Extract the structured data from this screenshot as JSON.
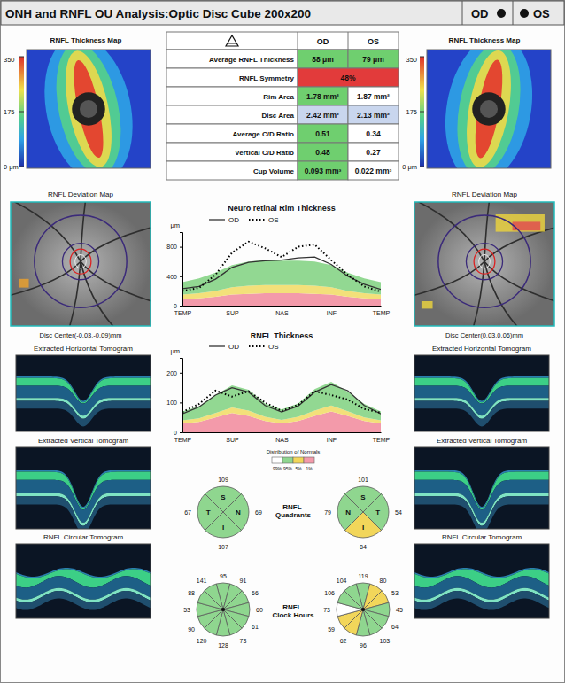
{
  "header": {
    "title": "ONH and RNFL OU Analysis:Optic Disc Cube 200x200",
    "od": "OD",
    "os": "OS"
  },
  "table": {
    "columns": [
      "OD",
      "OS"
    ],
    "rows": [
      {
        "label": "Average RNFL Thickness",
        "cells": [
          {
            "text": "88 μm",
            "color": "#6fcf6f"
          },
          {
            "text": "79 μm",
            "color": "#6fcf6f"
          }
        ]
      },
      {
        "label": "RNFL Symmetry",
        "cells": [
          {
            "text": "48%",
            "color": "#e23b3b"
          }
        ]
      },
      {
        "label": "Rim Area",
        "cells": [
          {
            "text": "1.78 mm²",
            "color": "#6fcf6f"
          },
          {
            "text": "1.87 mm²",
            "color": "#ffffff"
          }
        ]
      },
      {
        "label": "Disc Area",
        "cells": [
          {
            "text": "2.42 mm²",
            "color": "#c9d6ee"
          },
          {
            "text": "2.13 mm²",
            "color": "#c9d6ee"
          }
        ]
      },
      {
        "label": "Average C/D Ratio",
        "cells": [
          {
            "text": "0.51",
            "color": "#6fcf6f"
          },
          {
            "text": "0.34",
            "color": "#ffffff"
          }
        ]
      },
      {
        "label": "Vertical C/D Ratio",
        "cells": [
          {
            "text": "0.48",
            "color": "#6fcf6f"
          },
          {
            "text": "0.27",
            "color": "#ffffff"
          }
        ]
      },
      {
        "label": "Cup Volume",
        "cells": [
          {
            "text": "0.093 mm³",
            "color": "#6fcf6f"
          },
          {
            "text": "0.022 mm³",
            "color": "#ffffff"
          }
        ]
      }
    ]
  },
  "panels": {
    "od": {
      "thickness_map": "RNFL Thickness Map",
      "color_bar": {
        "range": [
          0,
          350
        ],
        "ticks": [
          350,
          175,
          {
            "value": 0,
            "label": "0 μm"
          }
        ]
      },
      "deviation_map": "RNFL Deviation Map",
      "disc_center": "Disc Center(-0.03,-0.09)mm",
      "horizontal_tomogram": "Extracted Horizontal Tomogram",
      "vertical_tomogram": "Extracted Vertical Tomogram",
      "circular_tomogram": "RNFL Circular Tomogram"
    },
    "os": {
      "thickness_map": "RNFL Thickness Map",
      "color_bar": {
        "range": [
          0,
          350
        ],
        "ticks": [
          350,
          175,
          {
            "value": 0,
            "label": "0 μm"
          }
        ]
      },
      "deviation_map": "RNFL Deviation Map",
      "disc_center": "Disc Center(0.03,0.06)mm",
      "horizontal_tomogram": "Extracted Horizontal Tomogram",
      "vertical_tomogram": "Extracted Vertical Tomogram",
      "circular_tomogram": "RNFL Circular Tomogram"
    }
  },
  "chart_data": [
    {
      "type": "line",
      "title": "Neuro retinal Rim Thickness",
      "y_label": "μm",
      "categories": [
        "TEMP",
        null,
        null,
        "SUP",
        null,
        null,
        "NAS",
        null,
        null,
        "INF",
        null,
        null,
        "TEMP"
      ],
      "ylim": [
        0,
        1000
      ],
      "yticks": [
        0,
        400,
        800
      ],
      "legend": "top-left",
      "normal_bands": [
        {
          "color": "#f39aaa",
          "values": [
            90,
            100,
            120,
            150,
            160,
            170,
            170,
            170,
            160,
            150,
            120,
            100,
            90
          ]
        },
        {
          "color": "#f3e07a",
          "values": [
            60,
            70,
            80,
            100,
            110,
            110,
            110,
            110,
            110,
            100,
            80,
            70,
            60
          ]
        },
        {
          "color": "#92d892",
          "values": [
            170,
            200,
            250,
            300,
            330,
            340,
            330,
            330,
            330,
            300,
            250,
            200,
            170
          ]
        }
      ],
      "series": [
        {
          "name": "OD",
          "color": "#333333",
          "line_style": "solid",
          "values": [
            230,
            260,
            360,
            520,
            590,
            610,
            620,
            650,
            660,
            560,
            400,
            290,
            220
          ]
        },
        {
          "name": "OS",
          "color": "#000000",
          "line_style": "dotted",
          "values": [
            200,
            240,
            420,
            720,
            870,
            780,
            660,
            800,
            830,
            620,
            420,
            260,
            190
          ]
        }
      ]
    },
    {
      "type": "line",
      "title": "RNFL Thickness",
      "y_label": "μm",
      "categories": [
        "TEMP",
        null,
        null,
        "SUP",
        null,
        null,
        "NAS",
        null,
        null,
        "INF",
        null,
        null,
        "TEMP"
      ],
      "ylim": [
        0,
        250
      ],
      "yticks": [
        0,
        100,
        200
      ],
      "legend": "top-left",
      "normal_bands": [
        {
          "color": "#f39aaa",
          "values": [
            30,
            35,
            50,
            65,
            55,
            38,
            30,
            38,
            55,
            70,
            55,
            38,
            30
          ]
        },
        {
          "color": "#f3e07a",
          "values": [
            10,
            12,
            15,
            18,
            18,
            14,
            12,
            14,
            18,
            20,
            16,
            12,
            10
          ]
        },
        {
          "color": "#92d892",
          "values": [
            30,
            40,
            60,
            75,
            70,
            45,
            35,
            45,
            72,
            80,
            65,
            45,
            30
          ]
        }
      ],
      "series": [
        {
          "name": "OD",
          "color": "#333333",
          "line_style": "solid",
          "values": [
            62,
            85,
            125,
            150,
            135,
            90,
            68,
            88,
            135,
            160,
            140,
            90,
            62
          ]
        },
        {
          "name": "OS",
          "color": "#000000",
          "line_style": "dotted",
          "values": [
            68,
            95,
            140,
            120,
            138,
            100,
            72,
            92,
            138,
            125,
            110,
            78,
            66
          ]
        }
      ]
    },
    {
      "type": "sectors",
      "title": "RNFL Quadrants",
      "data_labels": true,
      "eyes": [
        {
          "categories": [
            "S",
            "N",
            "I",
            "T"
          ],
          "values": [
            109,
            69,
            107,
            67
          ],
          "colors": [
            "#8fd68f",
            "#8fd68f",
            "#8fd68f",
            "#8fd68f"
          ]
        },
        {
          "categories": [
            "S",
            "T",
            "I",
            "N"
          ],
          "values": [
            101,
            54,
            84,
            79
          ],
          "colors": [
            "#8fd68f",
            "#8fd68f",
            "#f2d65a",
            "#8fd68f"
          ]
        }
      ],
      "normals_legend": {
        "title": "Distribution of Normals",
        "entries": [
          {
            "label": "99%",
            "color": "#ffffff"
          },
          {
            "label": "95%",
            "color": "#8fd68f"
          },
          {
            "label": "5%",
            "color": "#f2d65a"
          },
          {
            "label": "1%",
            "color": "#f39aaa"
          }
        ]
      }
    },
    {
      "type": "sectors",
      "title": "RNFL Clock Hours",
      "data_labels": true,
      "eyes": [
        {
          "values": [
            95,
            91,
            66,
            60,
            61,
            73,
            128,
            120,
            90,
            53,
            88,
            141
          ],
          "colors": [
            "#8fd68f",
            "#8fd68f",
            "#8fd68f",
            "#8fd68f",
            "#8fd68f",
            "#8fd68f",
            "#8fd68f",
            "#8fd68f",
            "#8fd68f",
            "#8fd68f",
            "#8fd68f",
            "#8fd68f"
          ]
        },
        {
          "values": [
            119,
            80,
            53,
            45,
            64,
            103,
            96,
            62,
            59,
            73,
            106,
            104
          ],
          "colors": [
            "#8fd68f",
            "#f2d65a",
            "#f2d65a",
            "#8fd68f",
            "#8fd68f",
            "#8fd68f",
            "#8fd68f",
            "#f2d65a",
            "#f2d65a",
            "#ffffff",
            "#8fd68f",
            "#8fd68f"
          ]
        }
      ]
    }
  ]
}
